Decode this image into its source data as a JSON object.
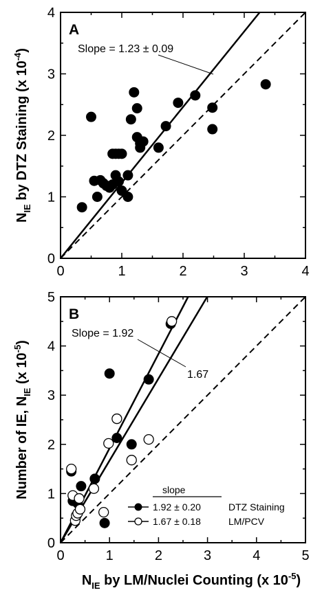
{
  "chart_data": [
    {
      "type": "scatter",
      "panel_label": "A",
      "ylabel": {
        "main": "N",
        "sub": "IE",
        "rest": " by DTZ Staining (x 10",
        "sup": "-4",
        "end": ")"
      },
      "xlim": [
        0,
        4
      ],
      "ylim": [
        0,
        4
      ],
      "xticks": [
        "0",
        "1",
        "2",
        "3",
        "4"
      ],
      "yticks": [
        "0",
        "1",
        "2",
        "3",
        "4"
      ],
      "annotation": "Slope = 1.23 ± 0.09",
      "fit_slope": 1.23,
      "identity_line": true,
      "series": [
        {
          "marker": "filled",
          "x": [
            0.35,
            0.5,
            0.55,
            0.6,
            0.65,
            0.7,
            0.75,
            0.8,
            0.85,
            0.85,
            0.9,
            0.9,
            0.95,
            0.95,
            1.0,
            1.0,
            1.1,
            1.1,
            1.15,
            1.2,
            1.25,
            1.25,
            1.3,
            1.3,
            1.35,
            1.6,
            1.72,
            1.92,
            2.2,
            2.48,
            2.48,
            3.35
          ],
          "y": [
            0.83,
            2.3,
            1.26,
            1.0,
            1.27,
            1.22,
            1.18,
            1.15,
            1.2,
            1.7,
            1.7,
            1.35,
            1.25,
            1.7,
            1.1,
            1.7,
            1.0,
            1.35,
            2.26,
            2.7,
            2.44,
            1.97,
            1.87,
            1.8,
            1.9,
            1.8,
            2.15,
            2.53,
            2.65,
            2.1,
            2.45,
            2.83
          ]
        }
      ]
    },
    {
      "type": "scatter",
      "panel_label": "B",
      "ylabel": {
        "main": "Number of IE, N",
        "sub": "IE",
        "rest": " (x 10",
        "sup": "-5",
        "end": ")"
      },
      "xlabel": {
        "main": "N",
        "sub": "IE",
        "rest": " by LM/Nuclei Counting (x 10",
        "sup": "-5",
        "end": ")"
      },
      "xlim": [
        0,
        5
      ],
      "ylim": [
        0,
        5
      ],
      "xticks": [
        "0",
        "1",
        "2",
        "3",
        "4",
        "5"
      ],
      "yticks": [
        "0",
        "1",
        "2",
        "3",
        "4",
        "5"
      ],
      "annotation_top": "Slope = 1.92",
      "annotation_mid": "1.67",
      "identity_line": true,
      "legend": {
        "title": "slope",
        "items": [
          {
            "marker": "filled",
            "value": "1.92 ± 0.20",
            "name": "DTZ Staining",
            "slope": 1.92
          },
          {
            "marker": "open",
            "value": "1.67 ± 0.18",
            "name": "LM/PCV",
            "slope": 1.67
          }
        ]
      },
      "series": [
        {
          "marker": "filled",
          "x": [
            0.22,
            0.25,
            0.3,
            0.35,
            0.42,
            0.7,
            0.9,
            1.0,
            1.15,
            1.45,
            1.8,
            2.25
          ],
          "y": [
            1.45,
            0.85,
            0.85,
            0.8,
            1.15,
            1.3,
            0.4,
            3.44,
            2.13,
            2.0,
            3.32,
            4.45
          ]
        },
        {
          "marker": "open",
          "x": [
            0.22,
            0.25,
            0.3,
            0.32,
            0.35,
            0.38,
            0.4,
            0.68,
            0.88,
            0.98,
            1.15,
            1.45,
            1.8,
            2.27
          ],
          "y": [
            1.5,
            0.96,
            0.45,
            0.55,
            0.6,
            0.9,
            0.68,
            1.1,
            0.62,
            2.02,
            2.52,
            1.68,
            2.1,
            4.5
          ]
        }
      ]
    }
  ]
}
